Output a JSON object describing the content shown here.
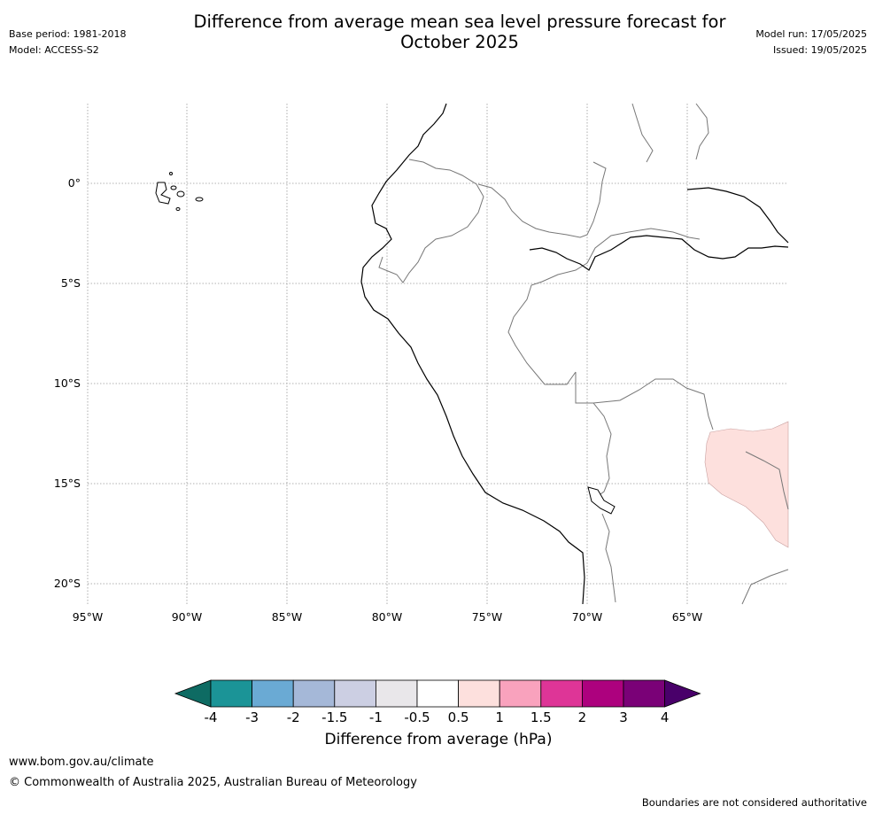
{
  "title": {
    "line1": "Difference from average mean sea level pressure forecast for",
    "line2": "October 2025"
  },
  "meta_left": {
    "base_period": "Base period: 1981-2018",
    "model": "Model: ACCESS-S2"
  },
  "meta_right": {
    "model_run": "Model run: 17/05/2025",
    "issued": "Issued: 19/05/2025"
  },
  "map": {
    "lat_labels": [
      "0°",
      "5°S",
      "10°S",
      "15°S",
      "20°S"
    ],
    "lon_labels": [
      "95°W",
      "90°W",
      "85°W",
      "80°W",
      "75°W",
      "70°W",
      "65°W"
    ],
    "grid": "dotted",
    "anomaly_region": {
      "value_class": "0.5 to 1",
      "color": "#fde0dd",
      "location": "southeast"
    }
  },
  "colorbar": {
    "ticks": [
      "-4",
      "-3",
      "-2",
      "-1.5",
      "-1",
      "-0.5",
      "0.5",
      "1",
      "1.5",
      "2",
      "3",
      "4"
    ],
    "colors": [
      "#1b9497",
      "#6aaad4",
      "#a5b8d8",
      "#cccfe3",
      "#e9e7ea",
      "#ffffff",
      "#fde0dd",
      "#f9a2bd",
      "#de3597",
      "#ad017e",
      "#7a0177"
    ],
    "extend_low_color": "#0e6b63",
    "extend_high_color": "#49006a",
    "label": "Difference from average (hPa)"
  },
  "footer": {
    "url": "www.bom.gov.au/climate",
    "copyright": "© Commonwealth of Australia 2025, Australian Bureau of Meteorology",
    "disclaimer": "Boundaries are not considered authoritative"
  }
}
